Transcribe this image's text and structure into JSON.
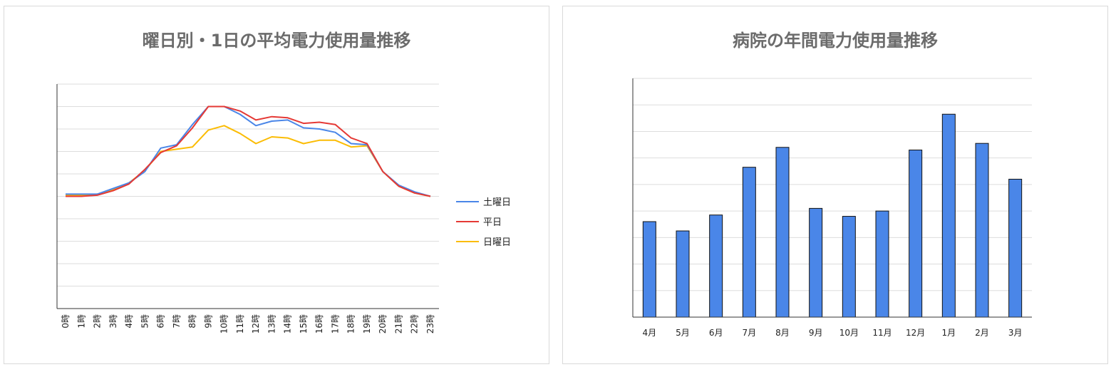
{
  "chart_data": [
    {
      "type": "line",
      "title": "曜日別・1日の平均電力使用量推移",
      "xlabel": "",
      "ylabel": "",
      "categories": [
        "0時",
        "1時",
        "2時",
        "3時",
        "4時",
        "5時",
        "6時",
        "7時",
        "8時",
        "9時",
        "10時",
        "11時",
        "12時",
        "13時",
        "14時",
        "15時",
        "16時",
        "17時",
        "18時",
        "19時",
        "20時",
        "21時",
        "22時",
        "23時"
      ],
      "ylim": [
        0,
        10
      ],
      "grid": true,
      "legend_position": "right",
      "series": [
        {
          "name": "土曜日",
          "color": "#4a86e8",
          "values": [
            5.1,
            5.1,
            5.1,
            5.35,
            5.6,
            6.1,
            7.15,
            7.3,
            8.2,
            9.0,
            9.0,
            8.65,
            8.15,
            8.35,
            8.4,
            8.05,
            8.0,
            7.85,
            7.35,
            7.3,
            6.1,
            5.5,
            5.2,
            5.0
          ]
        },
        {
          "name": "平日",
          "color": "#e53935",
          "values": [
            5.0,
            5.0,
            5.05,
            5.25,
            5.55,
            6.2,
            6.95,
            7.25,
            8.05,
            9.0,
            9.0,
            8.8,
            8.4,
            8.55,
            8.5,
            8.25,
            8.3,
            8.2,
            7.6,
            7.35,
            6.1,
            5.45,
            5.15,
            5.0
          ]
        },
        {
          "name": "日曜日",
          "color": "#fbbc04",
          "values": [
            5.05,
            5.05,
            5.1,
            5.3,
            5.6,
            6.15,
            7.0,
            7.1,
            7.2,
            7.95,
            8.15,
            7.8,
            7.35,
            7.65,
            7.6,
            7.35,
            7.5,
            7.5,
            7.2,
            7.25,
            6.1,
            5.45,
            5.15,
            5.0
          ]
        }
      ]
    },
    {
      "type": "bar",
      "title": "病院の年間電力使用量推移",
      "xlabel": "",
      "ylabel": "",
      "categories": [
        "4月",
        "5月",
        "6月",
        "7月",
        "8月",
        "9月",
        "10月",
        "11月",
        "12月",
        "1月",
        "2月",
        "3月"
      ],
      "values": [
        3.6,
        3.25,
        3.85,
        5.65,
        6.4,
        4.1,
        3.8,
        4.0,
        6.3,
        7.65,
        6.55,
        5.2
      ],
      "ylim": [
        0,
        9
      ],
      "grid": true,
      "bar_color": "#4a86e8",
      "bar_stroke": "#111111"
    }
  ]
}
